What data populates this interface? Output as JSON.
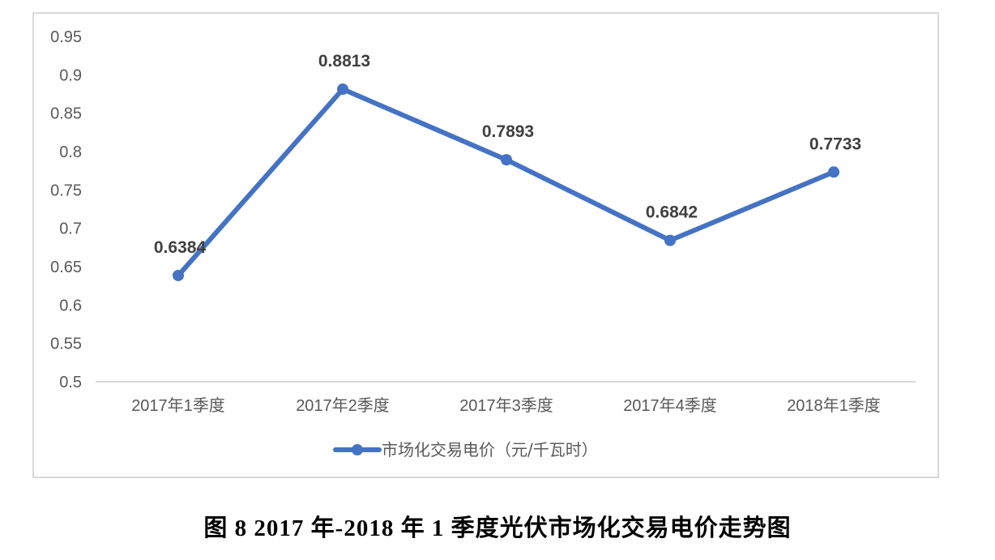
{
  "chart_data": {
    "type": "line",
    "categories": [
      "2017年1季度",
      "2017年2季度",
      "2017年3季度",
      "2017年4季度",
      "2018年1季度"
    ],
    "series": [
      {
        "name": "市场化交易电价（元/千瓦时）",
        "values": [
          0.6384,
          0.8813,
          0.7893,
          0.6842,
          0.7733
        ],
        "color": "#4472C4"
      }
    ],
    "data_labels": [
      "0.6384",
      "0.8813",
      "0.7893",
      "0.6842",
      "0.7733"
    ],
    "yticks": [
      "0.5",
      "0.55",
      "0.6",
      "0.65",
      "0.7",
      "0.75",
      "0.8",
      "0.85",
      "0.9",
      "0.95"
    ],
    "ylim": [
      0.5,
      0.95
    ],
    "grid": false,
    "legend": "bottom",
    "title": "",
    "xlabel": "",
    "ylabel": ""
  },
  "caption": "图 8 2017 年-2018 年 1 季度光伏市场化交易电价走势图"
}
